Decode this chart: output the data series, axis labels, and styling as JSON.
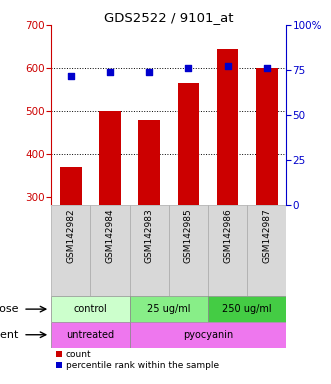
{
  "title": "GDS2522 / 9101_at",
  "categories": [
    "GSM142982",
    "GSM142984",
    "GSM142983",
    "GSM142985",
    "GSM142986",
    "GSM142987"
  ],
  "bar_values": [
    370,
    500,
    480,
    565,
    645,
    600
  ],
  "percentile_values": [
    72,
    74,
    74,
    76,
    77,
    76
  ],
  "bar_color": "#cc0000",
  "dot_color": "#0000cc",
  "left_ylim": [
    280,
    700
  ],
  "left_yticks": [
    300,
    400,
    500,
    600,
    700
  ],
  "right_ylim": [
    0,
    100
  ],
  "right_yticks": [
    0,
    25,
    50,
    75,
    100
  ],
  "right_yticklabels": [
    "0",
    "25",
    "50",
    "75",
    "100%"
  ],
  "grid_values": [
    400,
    500,
    600
  ],
  "dose_groups": [
    {
      "label": "control",
      "span": [
        0,
        2
      ],
      "color": "#ccffcc"
    },
    {
      "label": "25 ug/ml",
      "span": [
        2,
        4
      ],
      "color": "#88ee88"
    },
    {
      "label": "250 ug/ml",
      "span": [
        4,
        6
      ],
      "color": "#44cc44"
    }
  ],
  "agent_groups": [
    {
      "label": "untreated",
      "span": [
        0,
        2
      ],
      "color": "#ee77ee"
    },
    {
      "label": "pyocyanin",
      "span": [
        2,
        6
      ],
      "color": "#ee77ee"
    }
  ],
  "dose_label": "dose",
  "agent_label": "agent",
  "legend_count": "count",
  "legend_percentile": "percentile rank within the sample",
  "title_color": "#000000",
  "left_axis_color": "#cc0000",
  "right_axis_color": "#0000cc",
  "bar_bottom": 280,
  "label_bg_color": "#d8d8d8"
}
